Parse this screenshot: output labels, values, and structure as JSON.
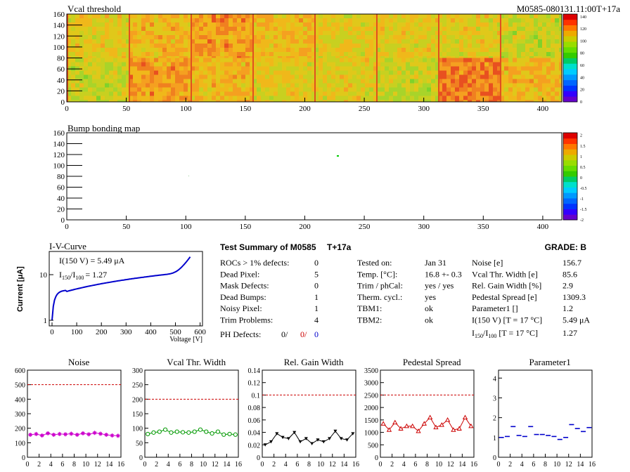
{
  "top_map": {
    "title": "Vcal threshold",
    "run_label": "M0585-080131.11:00T+17a",
    "y_ticks": [
      "0",
      "20",
      "40",
      "60",
      "80",
      "100",
      "120",
      "140",
      "160"
    ],
    "x_ticks": [
      "0",
      "50",
      "100",
      "150",
      "200",
      "250",
      "300",
      "350",
      "400"
    ],
    "scale_ticks": [
      "0",
      "20",
      "40",
      "60",
      "80",
      "100",
      "120",
      "140"
    ]
  },
  "bump_map": {
    "title": "Bump bonding map",
    "y_ticks": [
      "0",
      "20",
      "40",
      "60",
      "80",
      "100",
      "120",
      "140",
      "160"
    ],
    "x_ticks": [
      "0",
      "50",
      "100",
      "150",
      "200",
      "250",
      "300",
      "350",
      "400"
    ],
    "scale_ticks": [
      "-2",
      "-1.5",
      "-1",
      "-0.5",
      "0",
      "0.5",
      "1",
      "1.5",
      "2"
    ]
  },
  "iv_curve": {
    "title": "I-V-Curve",
    "ylabel": "Current [μA]",
    "xlabel": "Voltage [V]",
    "annotation_1": "I(150 V) = 5.49 μA",
    "annotation_2_main": "I",
    "annotation_2_sub1": "150",
    "annotation_2_slash": "/I",
    "annotation_2_sub2": "100",
    "annotation_2_val": "=  1.27",
    "x_ticks": [
      "0",
      "100",
      "200",
      "300",
      "400",
      "500",
      "600"
    ],
    "y_ticks": [
      "1",
      "10"
    ]
  },
  "summary": {
    "title": "Test Summary of M0585",
    "tag": "T+17a",
    "grade": "GRADE:  B",
    "col1": [
      {
        "label": "ROCs > 1% defects:",
        "value": "0"
      },
      {
        "label": "Dead Pixel:",
        "value": "5"
      },
      {
        "label": "Mask Defects:",
        "value": "0"
      },
      {
        "label": "Dead Bumps:",
        "value": "1"
      },
      {
        "label": "Noisy Pixel:",
        "value": "1"
      },
      {
        "label": "Trim Problems:",
        "value": "4"
      }
    ],
    "ph_label": "PH Defects:",
    "ph_v1": "0/",
    "ph_v2": "0/",
    "ph_v3": "0",
    "col2": [
      {
        "label": "Tested on:",
        "value": "Jan 31"
      },
      {
        "label": "Temp. [°C]:",
        "value": "16.8 +- 0.3"
      },
      {
        "label": "Trim / phCal:",
        "value": "yes / yes"
      },
      {
        "label": "Therm. cycl.:",
        "value": "yes"
      },
      {
        "label": "TBM1:",
        "value": "ok"
      },
      {
        "label": "TBM2:",
        "value": "ok"
      }
    ],
    "col3": [
      {
        "label": "Noise [e]",
        "value": "156.7"
      },
      {
        "label": "Vcal Thr. Width [e]",
        "value": "85.6"
      },
      {
        "label": "Rel. Gain Width [%]",
        "value": "2.9"
      },
      {
        "label": "Pedestal Spread [e]",
        "value": "1309.3"
      },
      {
        "label": "Parameter1 []",
        "value": "1.2"
      },
      {
        "label": "I(150 V) [T = 17 °C]",
        "value": "5.49 μA"
      }
    ],
    "ratio_label_i": "I",
    "ratio_label_s1": "150",
    "ratio_label_mid": "/I",
    "ratio_label_s2": "100",
    "ratio_label_tail": "  [T = 17 °C]",
    "ratio_value": "1.27"
  },
  "chart_data": [
    {
      "type": "scatter",
      "title": "Noise",
      "color": "#cc00cc",
      "marker": "star",
      "x": [
        0,
        1,
        2,
        3,
        4,
        5,
        6,
        7,
        8,
        9,
        10,
        11,
        12,
        13,
        14,
        15
      ],
      "values": [
        155,
        160,
        150,
        165,
        155,
        160,
        158,
        162,
        155,
        165,
        158,
        168,
        162,
        155,
        150,
        148
      ],
      "ylim": [
        0,
        600
      ],
      "y_ticks": [
        "0",
        "100",
        "200",
        "300",
        "400",
        "500",
        "600"
      ],
      "x_ticks": [
        "0",
        "2",
        "4",
        "6",
        "8",
        "10",
        "12",
        "14",
        "16"
      ],
      "limit": 500
    },
    {
      "type": "scatter",
      "title": "Vcal Thr. Width",
      "color": "#009900",
      "marker": "circle",
      "x": [
        0,
        1,
        2,
        3,
        4,
        5,
        6,
        7,
        8,
        9,
        10,
        11,
        12,
        13,
        14,
        15
      ],
      "values": [
        80,
        85,
        88,
        95,
        85,
        88,
        86,
        85,
        88,
        95,
        88,
        82,
        88,
        78,
        80,
        78
      ],
      "ylim": [
        0,
        300
      ],
      "y_ticks": [
        "0",
        "50",
        "100",
        "150",
        "200",
        "250",
        "300"
      ],
      "x_ticks": [
        "0",
        "2",
        "4",
        "6",
        "8",
        "10",
        "12",
        "14",
        "16"
      ],
      "limit": 200
    },
    {
      "type": "scatter",
      "title": "Rel. Gain Width",
      "color": "#000000",
      "marker": "triangle-down",
      "x": [
        0,
        1,
        2,
        3,
        4,
        5,
        6,
        7,
        8,
        9,
        10,
        11,
        12,
        13,
        14,
        15
      ],
      "values": [
        0.02,
        0.025,
        0.038,
        0.032,
        0.03,
        0.04,
        0.025,
        0.03,
        0.022,
        0.028,
        0.025,
        0.03,
        0.042,
        0.03,
        0.028,
        0.038
      ],
      "ylim": [
        0,
        0.14
      ],
      "y_ticks": [
        "0",
        "0.02",
        "0.04",
        "0.06",
        "0.08",
        "0.1",
        "0.12",
        "0.14"
      ],
      "x_ticks": [
        "0",
        "2",
        "4",
        "6",
        "8",
        "10",
        "12",
        "14",
        "16"
      ],
      "limit": 0.1
    },
    {
      "type": "scatter",
      "title": "Pedestal Spread",
      "color": "#cc0000",
      "marker": "triangle-up",
      "x": [
        0,
        1,
        2,
        3,
        4,
        5,
        6,
        7,
        8,
        9,
        10,
        11,
        12,
        13,
        14,
        15
      ],
      "values": [
        1350,
        1100,
        1400,
        1150,
        1250,
        1250,
        1050,
        1350,
        1600,
        1200,
        1300,
        1500,
        1100,
        1150,
        1600,
        1250
      ],
      "ylim": [
        0,
        3500
      ],
      "y_ticks": [
        "0",
        "500",
        "1000",
        "1500",
        "2000",
        "2500",
        "3000",
        "3500"
      ],
      "x_ticks": [
        "0",
        "2",
        "4",
        "6",
        "8",
        "10",
        "12",
        "14",
        "16"
      ],
      "limit": 2500
    },
    {
      "type": "scatter",
      "title": "Parameter1",
      "color": "#0000cc",
      "marker": "dash",
      "x": [
        0,
        1,
        2,
        3,
        4,
        5,
        6,
        7,
        8,
        9,
        10,
        11,
        12,
        13,
        14,
        15
      ],
      "values": [
        1.0,
        1.05,
        1.55,
        1.1,
        1.05,
        1.55,
        1.15,
        1.15,
        1.1,
        1.05,
        0.9,
        1.0,
        1.65,
        1.45,
        1.3,
        1.5
      ],
      "ylim": [
        0,
        4.4
      ],
      "y_ticks": [
        "0",
        "1",
        "2",
        "3",
        "4"
      ],
      "x_ticks": [
        "0",
        "2",
        "4",
        "6",
        "8",
        "10",
        "12",
        "14",
        "16"
      ],
      "limit": null
    }
  ],
  "colors": {
    "limit_line": "#cc0000",
    "iv_line": "#0000cc",
    "bump_point": "#00cc00"
  }
}
